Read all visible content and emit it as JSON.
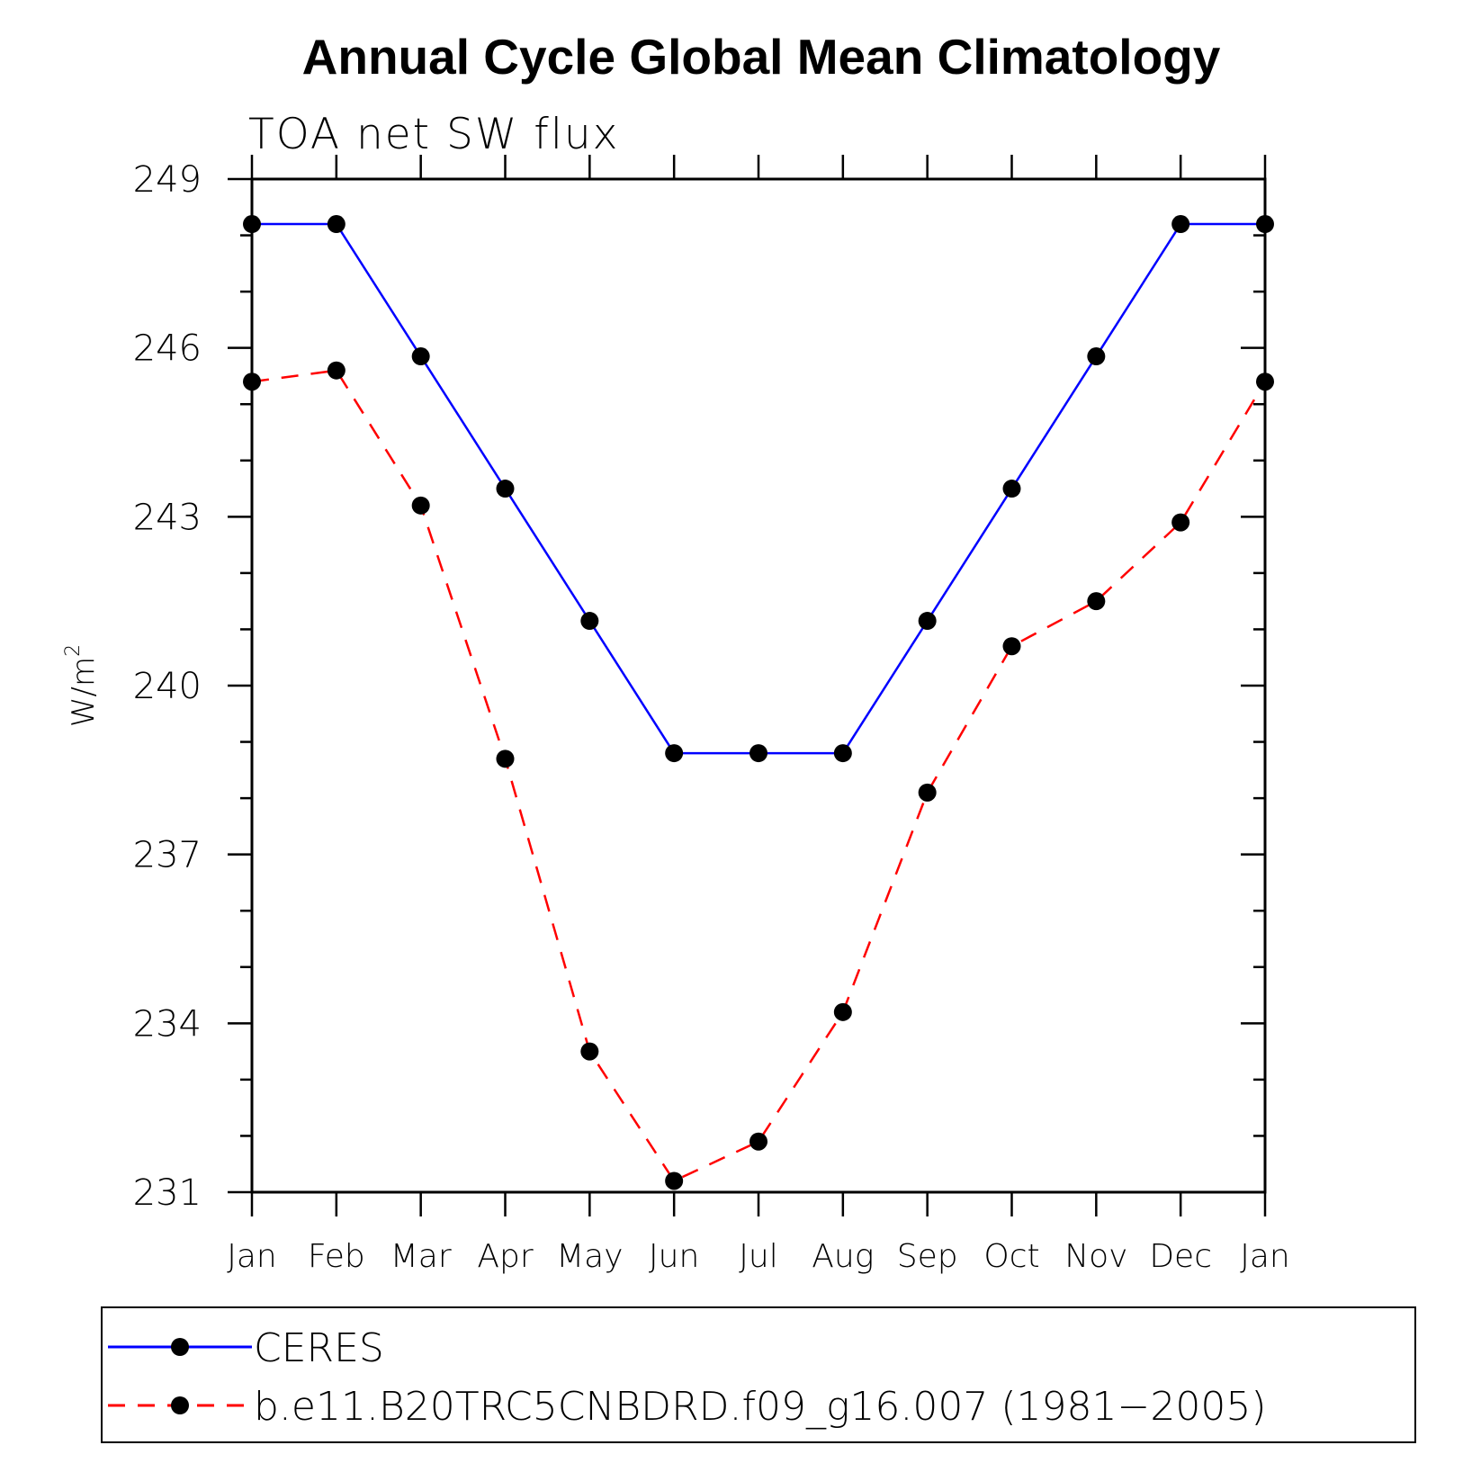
{
  "chart_data": {
    "type": "line",
    "title": "Annual Cycle Global Mean Climatology",
    "subtitle": "TOA net SW flux",
    "xlabel": "",
    "ylabel": "W/m",
    "ylabel_superscript": "2",
    "ylim": [
      231,
      249
    ],
    "yticks": [
      "249",
      "246",
      "243",
      "240",
      "237",
      "234",
      "231"
    ],
    "categories": [
      "Jan",
      "Feb",
      "Mar",
      "Apr",
      "May",
      "Jun",
      "Jul",
      "Aug",
      "Sep",
      "Oct",
      "Nov",
      "Dec",
      "Jan"
    ],
    "series": [
      {
        "name": "CERES",
        "color": "#0000ff",
        "dash": "solid",
        "values": [
          248.2,
          248.2,
          245.85,
          243.5,
          241.15,
          238.8,
          238.8,
          238.8,
          241.15,
          243.5,
          245.85,
          248.2,
          248.2
        ]
      },
      {
        "name": "b.e11.B20TRC5CNBDRD.f09_g16.007 (1981−2005)",
        "color": "#ff0000",
        "dash": "dashed",
        "values": [
          245.4,
          245.6,
          243.2,
          238.7,
          233.5,
          231.2,
          231.9,
          234.2,
          238.1,
          240.7,
          241.5,
          242.9,
          245.4
        ]
      }
    ],
    "legend": "bottom-boxed"
  }
}
